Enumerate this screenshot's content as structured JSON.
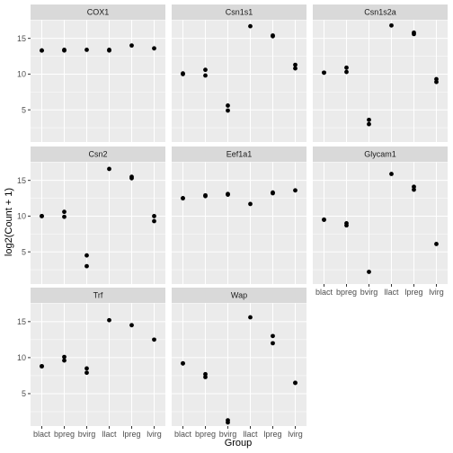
{
  "chart_data": {
    "type": "scatter",
    "facet_layout": "wrap, 3 columns",
    "shared_axes": true,
    "xlabel": "Group",
    "ylabel": "log2(Count + 1)",
    "categories": [
      "blact",
      "bpreg",
      "bvirg",
      "llact",
      "lpreg",
      "lvirg"
    ],
    "ylim": [
      0.5,
      17.6
    ],
    "yticks": [
      5,
      10,
      15
    ],
    "grid": true,
    "panel_background": "#ebebeb",
    "strip_background": "#d9d9d9",
    "gridline_color": "#ffffff",
    "point_color": "#000000",
    "facets": [
      {
        "name": "COX1",
        "points": [
          [
            "blact",
            13.3
          ],
          [
            "blact",
            13.3
          ],
          [
            "bpreg",
            13.3
          ],
          [
            "bpreg",
            13.4
          ],
          [
            "bvirg",
            13.4
          ],
          [
            "llact",
            13.3
          ],
          [
            "llact",
            13.4
          ],
          [
            "lpreg",
            14.0
          ],
          [
            "lvirg",
            13.6
          ]
        ]
      },
      {
        "name": "Csn1s1",
        "points": [
          [
            "blact",
            10.0
          ],
          [
            "blact",
            10.1
          ],
          [
            "bpreg",
            10.6
          ],
          [
            "bpreg",
            9.8
          ],
          [
            "bvirg",
            5.6
          ],
          [
            "bvirg",
            4.9
          ],
          [
            "llact",
            16.7
          ],
          [
            "lpreg",
            15.4
          ],
          [
            "lpreg",
            15.3
          ],
          [
            "lvirg",
            11.3
          ],
          [
            "lvirg",
            10.8
          ]
        ]
      },
      {
        "name": "Csn1s2a",
        "points": [
          [
            "blact",
            10.2
          ],
          [
            "blact",
            10.2
          ],
          [
            "bpreg",
            10.9
          ],
          [
            "bpreg",
            10.3
          ],
          [
            "bvirg",
            3.6
          ],
          [
            "bvirg",
            3.0
          ],
          [
            "llact",
            16.8
          ],
          [
            "lpreg",
            15.8
          ],
          [
            "lpreg",
            15.6
          ],
          [
            "lvirg",
            9.3
          ],
          [
            "lvirg",
            8.9
          ]
        ]
      },
      {
        "name": "Csn2",
        "points": [
          [
            "blact",
            10.0
          ],
          [
            "blact",
            10.0
          ],
          [
            "bpreg",
            10.6
          ],
          [
            "bpreg",
            9.9
          ],
          [
            "bvirg",
            4.5
          ],
          [
            "bvirg",
            3.0
          ],
          [
            "llact",
            16.6
          ],
          [
            "lpreg",
            15.5
          ],
          [
            "lpreg",
            15.3
          ],
          [
            "lvirg",
            10.0
          ],
          [
            "lvirg",
            9.3
          ]
        ]
      },
      {
        "name": "Eef1a1",
        "points": [
          [
            "blact",
            12.5
          ],
          [
            "blact",
            12.5
          ],
          [
            "bpreg",
            12.9
          ],
          [
            "bpreg",
            12.8
          ],
          [
            "bvirg",
            13.1
          ],
          [
            "bvirg",
            13.0
          ],
          [
            "llact",
            11.7
          ],
          [
            "lpreg",
            13.3
          ],
          [
            "lpreg",
            13.2
          ],
          [
            "lvirg",
            13.6
          ]
        ]
      },
      {
        "name": "Glycam1",
        "points": [
          [
            "blact",
            9.5
          ],
          [
            "blact",
            9.5
          ],
          [
            "bpreg",
            9.0
          ],
          [
            "bpreg",
            8.7
          ],
          [
            "bvirg",
            2.2
          ],
          [
            "llact",
            15.9
          ],
          [
            "lpreg",
            14.1
          ],
          [
            "lpreg",
            13.7
          ],
          [
            "lvirg",
            6.1
          ]
        ]
      },
      {
        "name": "Trf",
        "points": [
          [
            "blact",
            8.8
          ],
          [
            "blact",
            8.8
          ],
          [
            "bpreg",
            10.1
          ],
          [
            "bpreg",
            9.6
          ],
          [
            "bvirg",
            8.5
          ],
          [
            "bvirg",
            7.9
          ],
          [
            "llact",
            15.2
          ],
          [
            "lpreg",
            14.5
          ],
          [
            "lvirg",
            12.5
          ]
        ]
      },
      {
        "name": "Wap",
        "points": [
          [
            "blact",
            9.2
          ],
          [
            "blact",
            9.2
          ],
          [
            "bpreg",
            7.7
          ],
          [
            "bpreg",
            7.3
          ],
          [
            "bvirg",
            1.3
          ],
          [
            "bvirg",
            1.0
          ],
          [
            "llact",
            15.6
          ],
          [
            "lpreg",
            13.0
          ],
          [
            "lpreg",
            12.0
          ],
          [
            "lvirg",
            6.5
          ],
          [
            "lvirg",
            6.5
          ]
        ]
      }
    ]
  }
}
